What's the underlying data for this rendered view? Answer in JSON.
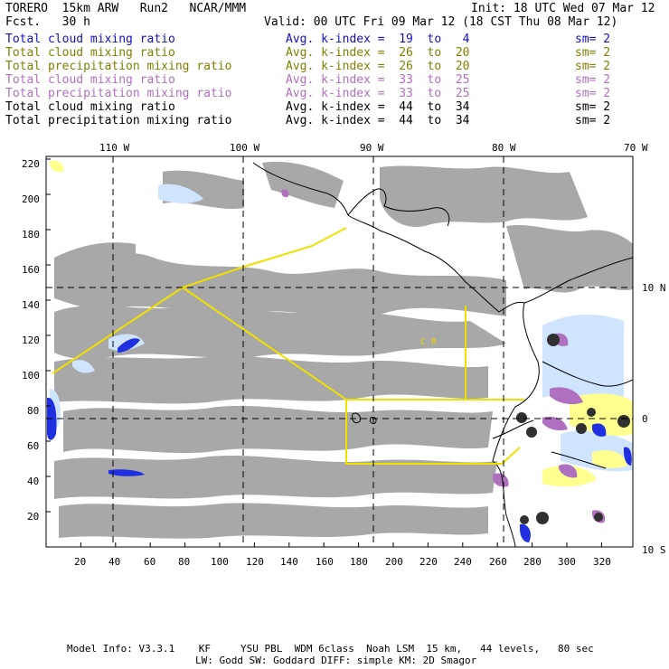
{
  "header": {
    "model": "TORERO  15km ARW   Run2   NCAR/MMM",
    "init": "Init: 18 UTC Wed 07 Mar 12",
    "fcst": "Fcst.   30 h",
    "valid": "Valid: 00 UTC Fri 09 Mar 12 (18 CST Thu 08 Mar 12)"
  },
  "legend": [
    {
      "name": "Total cloud mixing ratio",
      "avg": "Avg. k-index =  19  to   4",
      "sm": "sm= 2",
      "color": "#1010c8"
    },
    {
      "name": "Total cloud mixing ratio",
      "avg": "Avg. k-index =  26  to  20",
      "sm": "sm= 2",
      "color": "#7f7f00"
    },
    {
      "name": "Total precipitation mixing ratio",
      "avg": "Avg. k-index =  26  to  20",
      "sm": "sm= 2",
      "color": "#7f7f00"
    },
    {
      "name": "Total cloud mixing ratio",
      "avg": "Avg. k-index =  33  to  25",
      "sm": "sm= 2",
      "color": "#b070c0"
    },
    {
      "name": "Total precipitation mixing ratio",
      "avg": "Avg. k-index =  33  to  25",
      "sm": "sm= 2",
      "color": "#b070c0"
    },
    {
      "name": "Total cloud mixing ratio",
      "avg": "Avg. k-index =  44  to  34",
      "sm": "sm= 2",
      "color": "#000000"
    },
    {
      "name": "Total precipitation mixing ratio",
      "avg": "Avg. k-index =  44  to  34",
      "sm": "sm= 2",
      "color": "#000000"
    }
  ],
  "axes": {
    "top_lon": [
      "110 W",
      "100 W",
      "90 W",
      "80 W",
      "70 W"
    ],
    "right_lat": [
      "10 N",
      "0",
      "10 S"
    ],
    "left_y": [
      "220",
      "200",
      "180",
      "160",
      "140",
      "120",
      "100",
      "80",
      "60",
      "40",
      "20"
    ],
    "bottom_x": [
      "20",
      "40",
      "60",
      "80",
      "100",
      "120",
      "140",
      "160",
      "180",
      "200",
      "220",
      "240",
      "260",
      "280",
      "300",
      "320"
    ]
  },
  "map_labels": [
    "C R"
  ],
  "footer": {
    "line1": "Model Info: V3.3.1    KF     YSU PBL  WDM 6class  Noah LSM  15 km,   44 levels,   80 sec",
    "line2": "LW: Godd SW: Goddard DIFF: simple KM: 2D Smagor"
  },
  "colors": {
    "cloud_gray": "#a8a8a8",
    "boundary_yellow": "#f0e000",
    "light_blue": "#cfe4ff",
    "blue": "#2030e0",
    "violet": "#b070c0",
    "yellow_fill": "#ffff90",
    "dark": "#303030"
  }
}
